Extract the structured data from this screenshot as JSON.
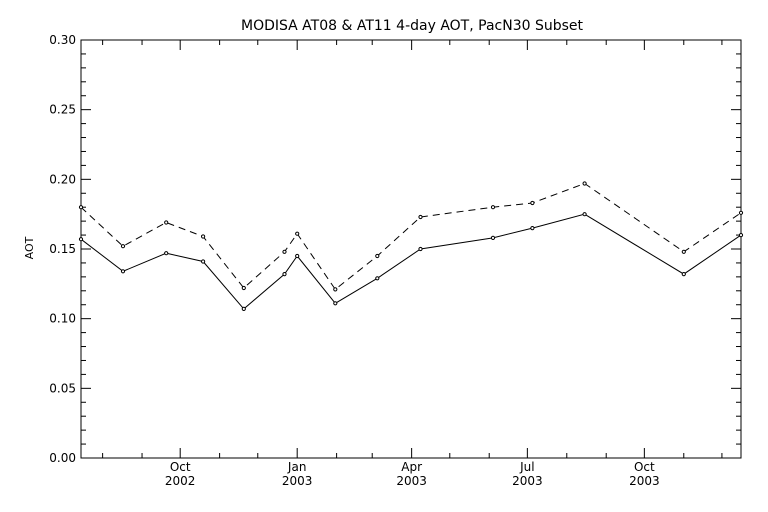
{
  "chart_data": {
    "type": "line",
    "title": "MODISA AT08 & AT11 4-day AOT, PacN30 Subset",
    "xlabel": "",
    "ylabel": "AOT",
    "ylim": [
      0.0,
      0.3
    ],
    "yticks": [
      "0.00",
      "0.05",
      "0.10",
      "0.15",
      "0.20",
      "0.25",
      "0.30"
    ],
    "xlim": [
      "2002-07-15",
      "2003-12-16"
    ],
    "xticks": [
      {
        "date": "2002-10-01",
        "month": "Oct",
        "year": "2002"
      },
      {
        "date": "2003-01-01",
        "month": "Jan",
        "year": "2003"
      },
      {
        "date": "2003-04-01",
        "month": "Apr",
        "year": "2003"
      },
      {
        "date": "2003-07-01",
        "month": "Jul",
        "year": "2003"
      },
      {
        "date": "2003-10-01",
        "month": "Oct",
        "year": "2003"
      }
    ],
    "grid": false,
    "series": [
      {
        "style": "solid",
        "points": [
          {
            "x": "2002-07-15",
            "y": 0.157
          },
          {
            "x": "2002-08-17",
            "y": 0.134
          },
          {
            "x": "2002-09-20",
            "y": 0.147
          },
          {
            "x": "2002-10-19",
            "y": 0.141
          },
          {
            "x": "2002-11-20",
            "y": 0.107
          },
          {
            "x": "2002-12-22",
            "y": 0.132
          },
          {
            "x": "2003-01-01",
            "y": 0.145
          },
          {
            "x": "2003-01-31",
            "y": 0.111
          },
          {
            "x": "2003-03-05",
            "y": 0.129
          },
          {
            "x": "2003-04-08",
            "y": 0.15
          },
          {
            "x": "2003-06-04",
            "y": 0.158
          },
          {
            "x": "2003-07-05",
            "y": 0.165
          },
          {
            "x": "2003-08-15",
            "y": 0.175
          },
          {
            "x": "2003-11-01",
            "y": 0.132
          },
          {
            "x": "2003-12-16",
            "y": 0.16
          }
        ]
      },
      {
        "style": "dashed",
        "points": [
          {
            "x": "2002-07-15",
            "y": 0.18
          },
          {
            "x": "2002-08-17",
            "y": 0.152
          },
          {
            "x": "2002-09-20",
            "y": 0.169
          },
          {
            "x": "2002-10-19",
            "y": 0.159
          },
          {
            "x": "2002-11-20",
            "y": 0.122
          },
          {
            "x": "2002-12-22",
            "y": 0.148
          },
          {
            "x": "2003-01-01",
            "y": 0.161
          },
          {
            "x": "2003-01-31",
            "y": 0.121
          },
          {
            "x": "2003-03-05",
            "y": 0.145
          },
          {
            "x": "2003-04-08",
            "y": 0.173
          },
          {
            "x": "2003-06-04",
            "y": 0.18
          },
          {
            "x": "2003-07-05",
            "y": 0.183
          },
          {
            "x": "2003-08-15",
            "y": 0.197
          },
          {
            "x": "2003-11-01",
            "y": 0.148
          },
          {
            "x": "2003-12-16",
            "y": 0.176
          }
        ]
      }
    ]
  }
}
